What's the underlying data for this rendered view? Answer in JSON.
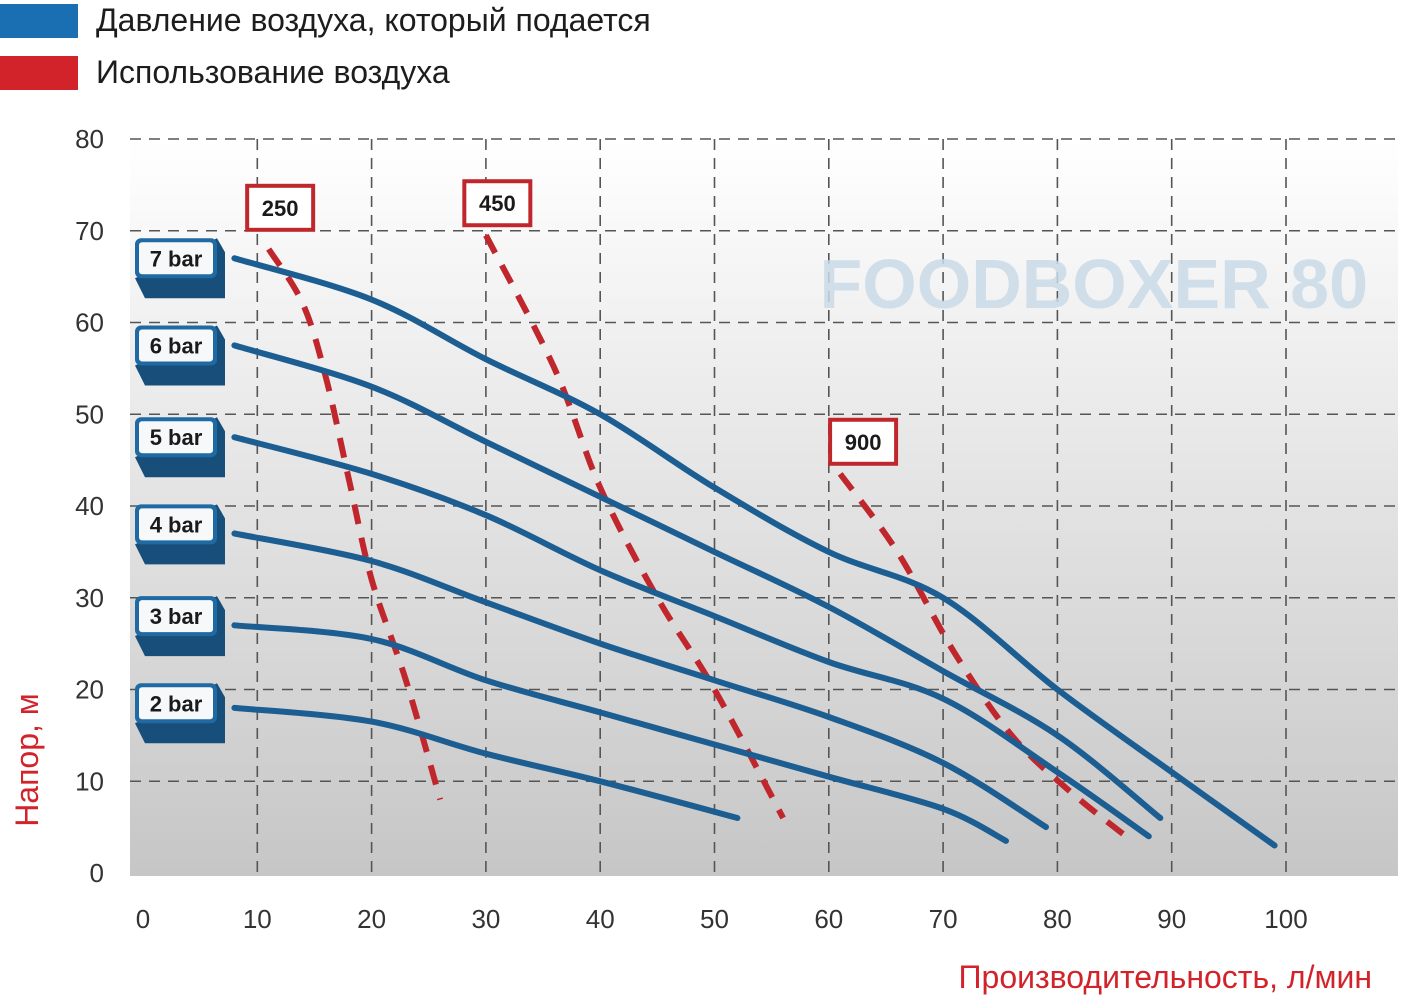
{
  "legend": [
    {
      "label": "Давление воздуха, который подается",
      "color": "#1a6fb3"
    },
    {
      "label": "Использование воздуха",
      "color": "#d2232a"
    }
  ],
  "watermark": "FOODBOXER 80",
  "chart_data": {
    "type": "line",
    "title": "",
    "xlabel": "Производительность, л/мин",
    "ylabel": "Напор, м",
    "xlim": [
      0,
      100
    ],
    "ylim": [
      0,
      80
    ],
    "x_ticks": [
      0,
      10,
      20,
      30,
      40,
      50,
      60,
      70,
      80,
      90,
      100
    ],
    "y_ticks": [
      0,
      10,
      20,
      30,
      40,
      50,
      60,
      70,
      80
    ],
    "grid": true,
    "series": [
      {
        "name": "7 bar",
        "kind": "air_pressure",
        "color": "#1d5e92",
        "points": [
          [
            8,
            67
          ],
          [
            20,
            62.5
          ],
          [
            30,
            56
          ],
          [
            40,
            50
          ],
          [
            50,
            42
          ],
          [
            60,
            35
          ],
          [
            70,
            30
          ],
          [
            80,
            20
          ],
          [
            90,
            11
          ],
          [
            99,
            3
          ]
        ]
      },
      {
        "name": "6 bar",
        "kind": "air_pressure",
        "color": "#1d5e92",
        "points": [
          [
            8,
            57.5
          ],
          [
            20,
            53
          ],
          [
            30,
            47
          ],
          [
            40,
            41
          ],
          [
            50,
            35
          ],
          [
            60,
            29
          ],
          [
            70,
            22
          ],
          [
            80,
            15
          ],
          [
            89,
            6
          ]
        ]
      },
      {
        "name": "5 bar",
        "kind": "air_pressure",
        "color": "#1d5e92",
        "points": [
          [
            8,
            47.5
          ],
          [
            20,
            43.5
          ],
          [
            30,
            39
          ],
          [
            40,
            33
          ],
          [
            50,
            28
          ],
          [
            60,
            23
          ],
          [
            70,
            19
          ],
          [
            80,
            11
          ],
          [
            88,
            4
          ]
        ]
      },
      {
        "name": "4 bar",
        "kind": "air_pressure",
        "color": "#1d5e92",
        "points": [
          [
            8,
            37
          ],
          [
            20,
            34
          ],
          [
            30,
            29.5
          ],
          [
            40,
            25
          ],
          [
            50,
            21
          ],
          [
            60,
            17
          ],
          [
            70,
            12
          ],
          [
            79,
            5
          ]
        ]
      },
      {
        "name": "3 bar",
        "kind": "air_pressure",
        "color": "#1d5e92",
        "points": [
          [
            8,
            27
          ],
          [
            20,
            25.5
          ],
          [
            30,
            21
          ],
          [
            40,
            17.5
          ],
          [
            50,
            14
          ],
          [
            60,
            10.5
          ],
          [
            70,
            7
          ],
          [
            75.5,
            3.5
          ]
        ]
      },
      {
        "name": "2 bar",
        "kind": "air_pressure",
        "color": "#1d5e92",
        "points": [
          [
            8,
            18
          ],
          [
            20,
            16.5
          ],
          [
            30,
            13
          ],
          [
            40,
            10
          ],
          [
            52,
            6
          ]
        ]
      },
      {
        "name": "250",
        "kind": "air_consumption",
        "color": "#c0272d",
        "points": [
          [
            11,
            68
          ],
          [
            14,
            62
          ],
          [
            16,
            54
          ],
          [
            18,
            43
          ],
          [
            20,
            32
          ],
          [
            23,
            21
          ],
          [
            26,
            8
          ]
        ]
      },
      {
        "name": "450",
        "kind": "air_consumption",
        "color": "#c0272d",
        "points": [
          [
            30,
            69.5
          ],
          [
            36,
            55
          ],
          [
            40,
            42
          ],
          [
            45,
            30
          ],
          [
            50,
            20
          ],
          [
            56,
            6
          ]
        ]
      },
      {
        "name": "900",
        "kind": "air_consumption",
        "color": "#c0272d",
        "points": [
          [
            61,
            43.5
          ],
          [
            66,
            35
          ],
          [
            71,
            24
          ],
          [
            76,
            15
          ],
          [
            81,
            9
          ],
          [
            86,
            4
          ]
        ]
      }
    ],
    "annotations": [
      {
        "text": "7 bar",
        "y": 67
      },
      {
        "text": "6 bar",
        "y": 57.5
      },
      {
        "text": "5 bar",
        "y": 47.5
      },
      {
        "text": "4 bar",
        "y": 38
      },
      {
        "text": "3 bar",
        "y": 28
      },
      {
        "text": "2 bar",
        "y": 18.5
      },
      {
        "text": "250",
        "x": 12,
        "y": 72.5
      },
      {
        "text": "450",
        "x": 31,
        "y": 73
      },
      {
        "text": "900",
        "x": 63,
        "y": 47
      }
    ]
  }
}
